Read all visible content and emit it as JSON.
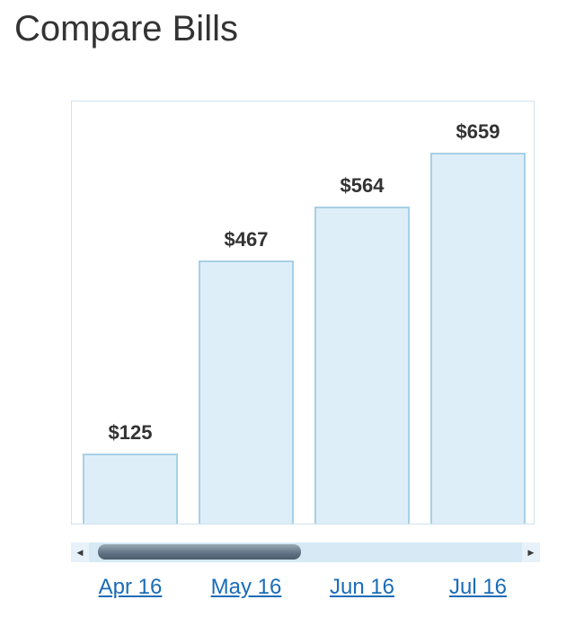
{
  "page": {
    "title": "Compare Bills"
  },
  "chart_data": {
    "type": "bar",
    "categories": [
      "Apr 16",
      "May 16",
      "Jun 16",
      "Jul 16"
    ],
    "values": [
      125,
      467,
      564,
      659
    ],
    "value_labels": [
      "$125",
      "$467",
      "$564",
      "$659"
    ],
    "title": "Compare Bills",
    "xlabel": "",
    "ylabel": "",
    "ylim": [
      0,
      750
    ],
    "grid": false,
    "colors": {
      "bar_fill": "#deeef8",
      "bar_stroke": "#a7d0e6",
      "link": "#1a6cb7"
    }
  },
  "scrollbar": {
    "left_icon": "triangle-left-icon",
    "right_icon": "triangle-right-icon"
  }
}
